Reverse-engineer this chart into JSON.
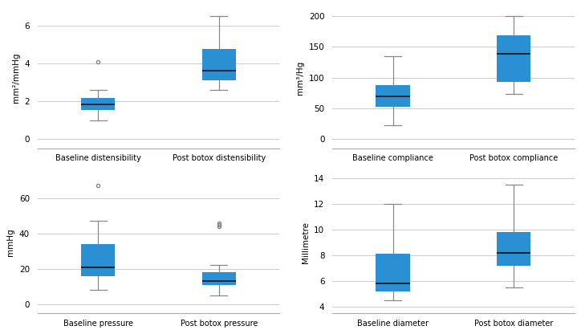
{
  "box_color": "#2b8fd4",
  "whisker_color": "#888888",
  "median_color": "#111111",
  "outlier_color": "#888888",
  "background_color": "#ffffff",
  "grid_color": "#cccccc",
  "subplot_TL": {
    "ylabel": "mm²/mmHg",
    "ylim": [
      -0.5,
      7
    ],
    "yticks": [
      0,
      2,
      4,
      6
    ],
    "categories": [
      "Baseline distensibility",
      "Post botox distensibility"
    ],
    "boxes": [
      {
        "q1": 1.55,
        "median": 1.85,
        "q3": 2.15,
        "whislo": 1.0,
        "whishi": 2.6,
        "fliers": [
          4.1
        ]
      },
      {
        "q1": 3.1,
        "median": 3.6,
        "q3": 4.75,
        "whislo": 2.6,
        "whishi": 6.5,
        "fliers": []
      }
    ]
  },
  "subplot_TR": {
    "ylabel": "mm³/Hg",
    "ylim": [
      -15,
      215
    ],
    "yticks": [
      0,
      50,
      100,
      150,
      200
    ],
    "categories": [
      "Baseline compliance",
      "Post botox compliance"
    ],
    "boxes": [
      {
        "q1": 53,
        "median": 70,
        "q3": 88,
        "whislo": 22,
        "whishi": 135,
        "fliers": []
      },
      {
        "q1": 93,
        "median": 138,
        "q3": 168,
        "whislo": 73,
        "whishi": 200,
        "fliers": []
      }
    ]
  },
  "subplot_BL": {
    "ylabel": "mmHg",
    "ylim": [
      -5,
      75
    ],
    "yticks": [
      0,
      20,
      40,
      60
    ],
    "categories": [
      "Baseline pressure",
      "Post botox pressure"
    ],
    "boxes": [
      {
        "q1": 16,
        "median": 21,
        "q3": 34,
        "whislo": 8,
        "whishi": 47,
        "fliers": [
          67
        ]
      },
      {
        "q1": 11,
        "median": 13,
        "q3": 18,
        "whislo": 5,
        "whishi": 22,
        "fliers": [
          44,
          45,
          46
        ]
      }
    ]
  },
  "subplot_BR": {
    "ylabel": "Millimetre",
    "ylim": [
      3.5,
      14.5
    ],
    "yticks": [
      4,
      6,
      8,
      10,
      12,
      14
    ],
    "categories": [
      "Baseline diameter",
      "Post botox diameter"
    ],
    "boxes": [
      {
        "q1": 5.2,
        "median": 5.8,
        "q3": 8.1,
        "whislo": 4.5,
        "whishi": 12.0,
        "fliers": []
      },
      {
        "q1": 7.2,
        "median": 8.2,
        "q3": 9.8,
        "whislo": 5.5,
        "whishi": 13.5,
        "fliers": []
      }
    ]
  }
}
